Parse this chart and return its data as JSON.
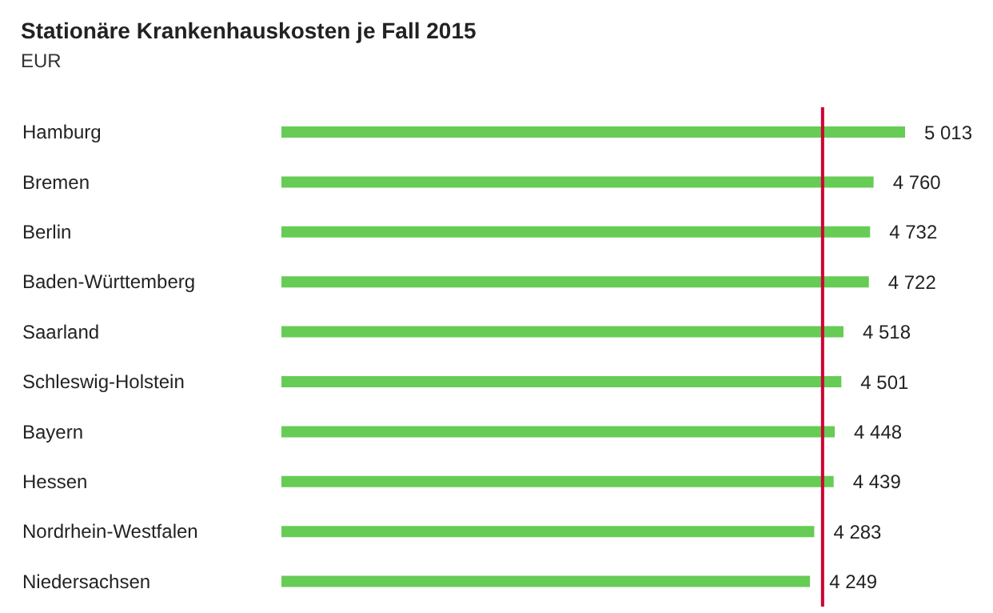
{
  "chart_data": {
    "type": "bar",
    "orientation": "horizontal",
    "title": "Stationäre Krankenhauskosten je Fall 2015",
    "subtitle": "EUR",
    "categories": [
      "Hamburg",
      "Bremen",
      "Berlin",
      "Baden-Württemberg",
      "Saarland",
      "Schleswig-Holstein",
      "Bayern",
      "Hessen",
      "Nordrhein-Westfalen",
      "Niedersachsen"
    ],
    "values": [
      5013,
      4760,
      4732,
      4722,
      4518,
      4501,
      4448,
      4439,
      4283,
      4249
    ],
    "value_labels": [
      "5 013",
      "4 760",
      "4 732",
      "4 722",
      "4 518",
      "4 501",
      "4 448",
      "4 439",
      "4 283",
      "4 249"
    ],
    "color": "#66cc55",
    "ref_lines": [
      {
        "axis": "x",
        "value": 4350,
        "color": "#cc0033"
      }
    ]
  }
}
